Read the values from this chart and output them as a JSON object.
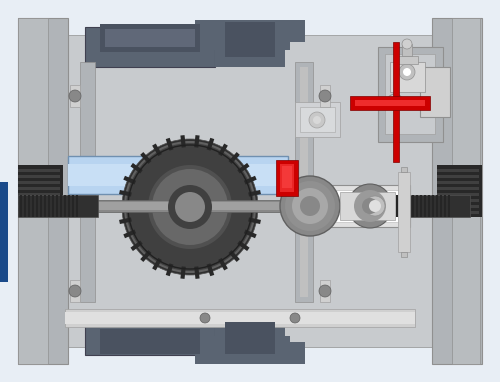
{
  "bg_color": "#e8eef5",
  "gray_light": "#c8c8c8",
  "gray_mid": "#a0a0a0",
  "gray_dark": "#606878",
  "gray_body": "#b0b4b8",
  "blue_light": "#a8c8e8",
  "red_accent": "#cc0000",
  "white": "#ffffff",
  "black": "#202020",
  "dark_gear": "#404040",
  "shaft_color": "#888888",
  "blue_bar": "#b8d4f0",
  "dark_slate": "#5a6472"
}
